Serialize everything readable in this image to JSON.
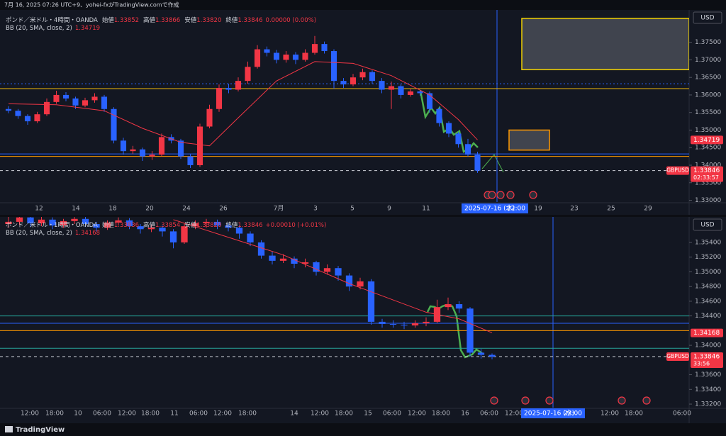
{
  "header": {
    "caption": "7月 16, 2025 07:26 UTC+9、yohei-fxがTradingView.comで作成"
  },
  "footer": {
    "brand": "TradingView"
  },
  "panels": [
    {
      "title": "ポンド／米ドル・4時間・OANDA",
      "ohlc": [
        {
          "label": "始値",
          "value": "1.33852"
        },
        {
          "label": "高値",
          "value": "1.33866"
        },
        {
          "label": "安値",
          "value": "1.33820"
        },
        {
          "label": "終値",
          "value": "1.33846"
        }
      ],
      "change": "0.00000 (0.00%)",
      "bb_label": "BB (20, SMA, close, 2)",
      "bb_value": 1.34719,
      "currency": "USD",
      "symbol": "GBPUSD",
      "last": 1.33846,
      "countdown": "02:33:57",
      "time_marker": {
        "date": "2025-07-16 (水)",
        "time": "22:00"
      },
      "ylim": [
        1.3295,
        1.3826
      ],
      "yticks": [
        {
          "value": 1.375,
          "label": "1.37500"
        },
        {
          "value": 1.37,
          "label": "1.37000"
        },
        {
          "value": 1.365,
          "label": "1.36500"
        },
        {
          "value": 1.36,
          "label": "1.36000"
        },
        {
          "value": 1.355,
          "label": "1.35500"
        },
        {
          "value": 1.35,
          "label": "1.35000"
        },
        {
          "value": 1.345,
          "label": "1.34500"
        },
        {
          "value": 1.34,
          "label": "1.34000"
        },
        {
          "value": 1.335,
          "label": "1.33500"
        },
        {
          "value": 1.33,
          "label": "1.33000"
        }
      ],
      "xticks": [
        "12",
        "14",
        "18",
        "20",
        "24",
        "26",
        "7月",
        "3",
        "5",
        "9",
        "11",
        "19",
        "23",
        "25",
        "29"
      ],
      "up_color": "#f23645",
      "down_color": "#2962ff",
      "bb_color": "#f23645",
      "candles": [
        [
          1.356,
          1.3568,
          1.3548,
          1.3555
        ],
        [
          1.3555,
          1.356,
          1.3532,
          1.354
        ],
        [
          1.354,
          1.3545,
          1.3515,
          1.3525
        ],
        [
          1.3525,
          1.3552,
          1.352,
          1.3545
        ],
        [
          1.3545,
          1.359,
          1.354,
          1.358
        ],
        [
          1.358,
          1.3612,
          1.3575,
          1.36
        ],
        [
          1.36,
          1.3608,
          1.3582,
          1.359
        ],
        [
          1.359,
          1.3595,
          1.356,
          1.357
        ],
        [
          1.357,
          1.3592,
          1.3565,
          1.3585
        ],
        [
          1.3585,
          1.3605,
          1.3578,
          1.3595
        ],
        [
          1.3595,
          1.36,
          1.3552,
          1.356
        ],
        [
          1.356,
          1.3565,
          1.3462,
          1.347
        ],
        [
          1.347,
          1.3478,
          1.343,
          1.344
        ],
        [
          1.344,
          1.3455,
          1.3432,
          1.3445
        ],
        [
          1.3445,
          1.345,
          1.3412,
          1.3425
        ],
        [
          1.3425,
          1.344,
          1.3415,
          1.343
        ],
        [
          1.343,
          1.349,
          1.3425,
          1.348
        ],
        [
          1.348,
          1.3488,
          1.3462,
          1.347
        ],
        [
          1.347,
          1.3475,
          1.3418,
          1.3425
        ],
        [
          1.3425,
          1.3432,
          1.3392,
          1.34
        ],
        [
          1.34,
          1.3518,
          1.3395,
          1.351
        ],
        [
          1.351,
          1.3572,
          1.3505,
          1.356
        ],
        [
          1.356,
          1.363,
          1.3552,
          1.362
        ],
        [
          1.362,
          1.3632,
          1.3605,
          1.3615
        ],
        [
          1.3615,
          1.365,
          1.361,
          1.364
        ],
        [
          1.364,
          1.3695,
          1.3632,
          1.368
        ],
        [
          1.368,
          1.3742,
          1.3675,
          1.373
        ],
        [
          1.373,
          1.3738,
          1.371,
          1.372
        ],
        [
          1.372,
          1.3728,
          1.369,
          1.37
        ],
        [
          1.37,
          1.3725,
          1.3692,
          1.3715
        ],
        [
          1.3715,
          1.3722,
          1.3688,
          1.37
        ],
        [
          1.37,
          1.373,
          1.3695,
          1.372
        ],
        [
          1.372,
          1.3768,
          1.3715,
          1.3745
        ],
        [
          1.3745,
          1.3752,
          1.3718,
          1.3725
        ],
        [
          1.3725,
          1.373,
          1.3618,
          1.364
        ],
        [
          1.364,
          1.3648,
          1.362,
          1.363
        ],
        [
          1.363,
          1.366,
          1.3625,
          1.365
        ],
        [
          1.365,
          1.3675,
          1.3642,
          1.3665
        ],
        [
          1.3665,
          1.367,
          1.3632,
          1.364
        ],
        [
          1.364,
          1.3648,
          1.3605,
          1.3615
        ],
        [
          1.3615,
          1.3638,
          1.356,
          1.3625
        ],
        [
          1.3625,
          1.363,
          1.359,
          1.36
        ],
        [
          1.36,
          1.3618,
          1.3595,
          1.361
        ],
        [
          1.361,
          1.3615,
          1.3598,
          1.3605
        ],
        [
          1.3605,
          1.361,
          1.355,
          1.356
        ],
        [
          1.356,
          1.3565,
          1.351,
          1.352
        ],
        [
          1.352,
          1.3525,
          1.348,
          1.349
        ],
        [
          1.349,
          1.3495,
          1.345,
          1.346
        ],
        [
          1.346,
          1.3475,
          1.3425,
          1.343
        ],
        [
          1.343,
          1.3438,
          1.3378,
          1.33846
        ]
      ],
      "bb_mid": {
        "x": [
          0,
          5,
          10,
          14,
          18,
          21,
          24,
          28,
          32,
          36,
          40,
          44,
          47,
          49
        ],
        "values": [
          1.3575,
          1.3572,
          1.3555,
          1.3505,
          1.3465,
          1.3455,
          1.3535,
          1.364,
          1.3695,
          1.369,
          1.3655,
          1.36,
          1.353,
          1.3472
        ]
      },
      "hlines": [
        {
          "price": 1.3632,
          "color": "#2962ff",
          "style": "dotted"
        },
        {
          "price": 1.3618,
          "color": "#f0b90b",
          "style": "solid"
        },
        {
          "price": 1.3432,
          "color": "#2962ff",
          "style": "solid"
        },
        {
          "price": 1.3425,
          "color": "#ff9800",
          "style": "solid"
        },
        {
          "price": 1.33846,
          "color": "#d1d4dc",
          "style": "dashed"
        }
      ],
      "boxes": [
        {
          "top": 1.3818,
          "bottom": 1.3672,
          "border": "#f0d000"
        },
        {
          "top": 1.35,
          "bottom": 1.3443,
          "border": "#ff9800"
        }
      ]
    },
    {
      "title": "ポンド／米ドル・1時間・OANDA",
      "ohlc": [
        {
          "label": "始値",
          "value": "1.33836"
        },
        {
          "label": "高値",
          "value": "1.33854"
        },
        {
          "label": "安値",
          "value": "1.33820"
        },
        {
          "label": "終値",
          "value": "1.33846"
        }
      ],
      "change": "+0.00010 (+0.01%)",
      "bb_label": "BB (20, SMA, close, 2)",
      "bb_value": 1.34168,
      "currency": "USD",
      "symbol": "GBPUSD",
      "last": 1.33846,
      "countdown": "33:56",
      "time_marker": {
        "date": "2025-07-16 (水)",
        "time": "22:00"
      },
      "ylim": [
        1.33152,
        1.35708
      ],
      "yticks": [
        {
          "value": 1.354,
          "label": "1.35400"
        },
        {
          "value": 1.352,
          "label": "1.35200"
        },
        {
          "value": 1.35,
          "label": "1.35000"
        },
        {
          "value": 1.348,
          "label": "1.34800"
        },
        {
          "value": 1.346,
          "label": "1.34600"
        },
        {
          "value": 1.344,
          "label": "1.34400"
        },
        {
          "value": 1.34,
          "label": "1.34000"
        },
        {
          "value": 1.336,
          "label": "1.33600"
        },
        {
          "value": 1.334,
          "label": "1.33400"
        },
        {
          "value": 1.332,
          "label": "1.33200"
        }
      ],
      "xticks": [
        "12:00",
        "18:00",
        "10",
        "06:00",
        "12:00",
        "18:00",
        "11",
        "06:00",
        "12:00",
        "18:00",
        "14",
        "12:00",
        "18:00",
        "15",
        "06:00",
        "12:00",
        "18:00",
        "16",
        "06:00",
        "12:00",
        "12:00",
        "18:00",
        "06:00"
      ],
      "up_color": "#f23645",
      "down_color": "#2962ff",
      "bb_color": "#f23645",
      "candles": [
        [
          1.3565,
          1.3576,
          1.356,
          1.3568
        ],
        [
          1.3568,
          1.358,
          1.3564,
          1.3574
        ],
        [
          1.3574,
          1.3578,
          1.3561,
          1.3566
        ],
        [
          1.3566,
          1.3575,
          1.3562,
          1.3571
        ],
        [
          1.3571,
          1.3574,
          1.3558,
          1.3563
        ],
        [
          1.3563,
          1.3572,
          1.356,
          1.3569
        ],
        [
          1.3569,
          1.3577,
          1.3565,
          1.3572
        ],
        [
          1.3572,
          1.3575,
          1.3561,
          1.3565
        ],
        [
          1.3565,
          1.3568,
          1.3555,
          1.356
        ],
        [
          1.356,
          1.357,
          1.3557,
          1.3567
        ],
        [
          1.3567,
          1.3574,
          1.3563,
          1.357
        ],
        [
          1.357,
          1.3573,
          1.3558,
          1.3562
        ],
        [
          1.3562,
          1.3565,
          1.3552,
          1.3558
        ],
        [
          1.3558,
          1.3564,
          1.3554,
          1.356
        ],
        [
          1.356,
          1.3563,
          1.3548,
          1.3555
        ],
        [
          1.3555,
          1.3558,
          1.3532,
          1.354
        ],
        [
          1.354,
          1.3566,
          1.3538,
          1.3562
        ],
        [
          1.3562,
          1.357,
          1.3558,
          1.3566
        ],
        [
          1.3566,
          1.3572,
          1.356,
          1.3568
        ],
        [
          1.3568,
          1.3571,
          1.3558,
          1.3563
        ],
        [
          1.3563,
          1.3566,
          1.3555,
          1.356
        ],
        [
          1.356,
          1.3563,
          1.3545,
          1.3552
        ],
        [
          1.3552,
          1.3555,
          1.3535,
          1.354
        ],
        [
          1.354,
          1.3543,
          1.3518,
          1.3522
        ],
        [
          1.3522,
          1.3528,
          1.351,
          1.3515
        ],
        [
          1.3515,
          1.3524,
          1.3512,
          1.3518
        ],
        [
          1.3518,
          1.3521,
          1.3505,
          1.3511
        ],
        [
          1.3511,
          1.3518,
          1.3506,
          1.3513
        ],
        [
          1.3513,
          1.3515,
          1.3495,
          1.35
        ],
        [
          1.35,
          1.351,
          1.3496,
          1.3505
        ],
        [
          1.3505,
          1.3508,
          1.3488,
          1.3495
        ],
        [
          1.3495,
          1.3498,
          1.3474,
          1.348
        ],
        [
          1.348,
          1.3492,
          1.3476,
          1.3487
        ],
        [
          1.3487,
          1.349,
          1.3428,
          1.3432
        ],
        [
          1.3432,
          1.3436,
          1.3424,
          1.3429
        ],
        [
          1.3429,
          1.3434,
          1.3424,
          1.3428
        ],
        [
          1.3428,
          1.3432,
          1.3422,
          1.3427
        ],
        [
          1.3427,
          1.3434,
          1.3424,
          1.343
        ],
        [
          1.343,
          1.3438,
          1.3426,
          1.3432
        ],
        [
          1.3432,
          1.3462,
          1.343,
          1.3452
        ],
        [
          1.3452,
          1.3465,
          1.3448,
          1.3456
        ],
        [
          1.3456,
          1.346,
          1.3444,
          1.345
        ],
        [
          1.345,
          1.3452,
          1.3385,
          1.339
        ],
        [
          1.339,
          1.3395,
          1.3382,
          1.3387
        ],
        [
          1.3387,
          1.3389,
          1.3381,
          1.33846
        ]
      ],
      "bb_mid": {
        "x": [
          15,
          25,
          31,
          38,
          41,
          44
        ],
        "values": [
          1.3571,
          1.3523,
          1.3484,
          1.3445,
          1.3436,
          1.3417
        ]
      },
      "hlines": [
        {
          "price": 1.344,
          "color": "#26a69a",
          "style": "solid"
        },
        {
          "price": 1.343,
          "color": "#2962ff",
          "style": "solid"
        },
        {
          "price": 1.342,
          "color": "#ff9800",
          "style": "solid"
        },
        {
          "price": 1.3396,
          "color": "#26a69a",
          "style": "solid"
        },
        {
          "price": 1.33846,
          "color": "#d1d4dc",
          "style": "dashed"
        }
      ],
      "boxes": []
    }
  ]
}
